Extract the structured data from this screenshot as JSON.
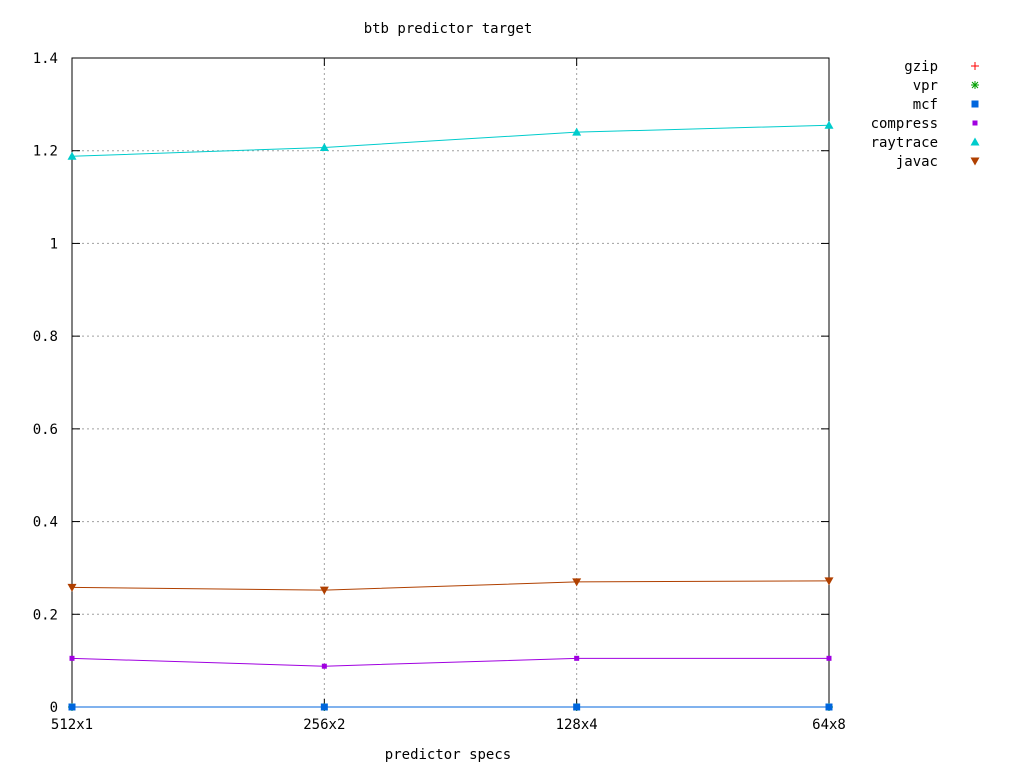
{
  "chart_data": {
    "type": "line",
    "title": "btb predictor target",
    "xlabel": "predictor specs",
    "ylabel": "",
    "categories": [
      "512x1",
      "256x2",
      "128x4",
      "64x8"
    ],
    "ylim": [
      0,
      1.4
    ],
    "yticks": [
      "0",
      "0.2",
      "0.4",
      "0.6",
      "0.8",
      "1",
      "1.2",
      "1.4"
    ],
    "grid": true,
    "legend_position": "top-right outside",
    "series": [
      {
        "name": "gzip",
        "color": "#ff0000",
        "marker": "plus",
        "values": [
          0,
          0,
          0,
          0
        ]
      },
      {
        "name": "vpr",
        "color": "#00a000",
        "marker": "star",
        "values": [
          0,
          0,
          0,
          0
        ]
      },
      {
        "name": "mcf",
        "color": "#0066dd",
        "marker": "square",
        "values": [
          0,
          0,
          0,
          0
        ]
      },
      {
        "name": "compress",
        "color": "#a000e0",
        "marker": "small-square",
        "values": [
          0.105,
          0.088,
          0.105,
          0.105
        ]
      },
      {
        "name": "raytrace",
        "color": "#00cccc",
        "marker": "triangle-up",
        "values": [
          1.188,
          1.207,
          1.24,
          1.255
        ]
      },
      {
        "name": "javac",
        "color": "#b04000",
        "marker": "triangle-down",
        "values": [
          0.258,
          0.252,
          0.27,
          0.272
        ]
      }
    ]
  }
}
